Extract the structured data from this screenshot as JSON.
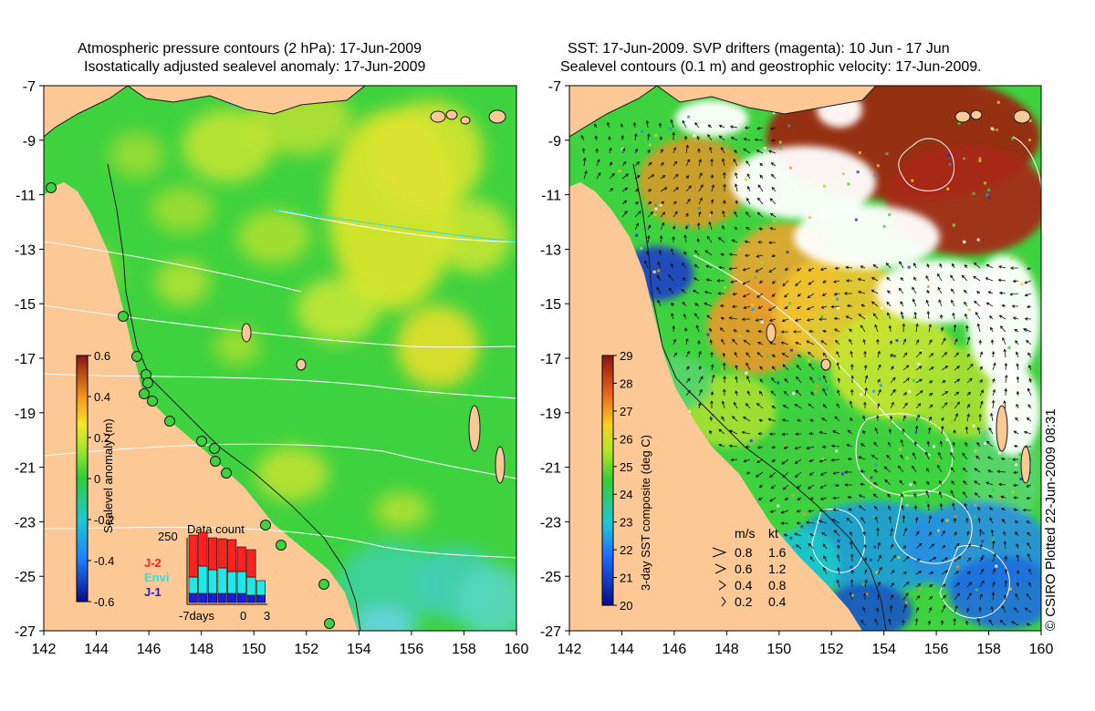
{
  "left_panel": {
    "title_line1": "Atmospheric pressure contours (2 hPa): 17-Jun-2009",
    "title_line2": "Isostatically adjusted sealevel anomaly: 17-Jun-2009",
    "colorbar": {
      "label": "Sealevel anomaly (m)",
      "ticks": [
        "0.6",
        "0.4",
        "0.2",
        "0",
        "-0.2",
        "-0.4",
        "-0.6"
      ],
      "range": [
        -0.6,
        0.6
      ]
    },
    "data_count": {
      "title": "Data count",
      "ymax_label": "250",
      "x_start_label": "-7days",
      "x_zero_label": "0",
      "x_end_label": "3",
      "legend": [
        {
          "label": "J-2",
          "color": "#ff2020"
        },
        {
          "label": "Envi",
          "color": "#20e8e8"
        },
        {
          "label": "J-1",
          "color": "#1c1cd8"
        }
      ]
    }
  },
  "right_panel": {
    "title_line1": "SST: 17-Jun-2009. SVP drifters (magenta): 10 Jun - 17 Jun",
    "title_line2": "Sealevel contours (0.1 m) and geostrophic velocity: 17-Jun-2009.",
    "colorbar": {
      "label": "3-day SST composite (deg C)",
      "ticks": [
        "29",
        "28",
        "27",
        "26",
        "25",
        "24",
        "23",
        "22",
        "21",
        "20"
      ],
      "range": [
        20,
        29
      ]
    },
    "velocity_legend": {
      "unit_ms": "m/s",
      "unit_kt": "kt",
      "rows": [
        {
          "ms": "0.8",
          "kt": "1.6"
        },
        {
          "ms": "0.6",
          "kt": "1.2"
        },
        {
          "ms": "0.4",
          "kt": "0.8"
        },
        {
          "ms": "0.2",
          "kt": "0.4"
        }
      ]
    }
  },
  "chart_data": {
    "type": "map",
    "panels": 2,
    "longitude_ticks": [
      "142",
      "144",
      "146",
      "148",
      "150",
      "152",
      "154",
      "156",
      "158",
      "160"
    ],
    "latitude_ticks": [
      "-7",
      "-9",
      "-11",
      "-13",
      "-15",
      "-17",
      "-19",
      "-21",
      "-23",
      "-25",
      "-27"
    ],
    "lon_range": [
      142,
      160
    ],
    "lat_range": [
      -27,
      -7
    ],
    "colors": {
      "land": "#fcc896",
      "ocean_base": "#3fd23f",
      "cloud_mask": "#ffffff"
    }
  },
  "credit": "© CSIRO Plotted 22-Jun-2009 08:31"
}
